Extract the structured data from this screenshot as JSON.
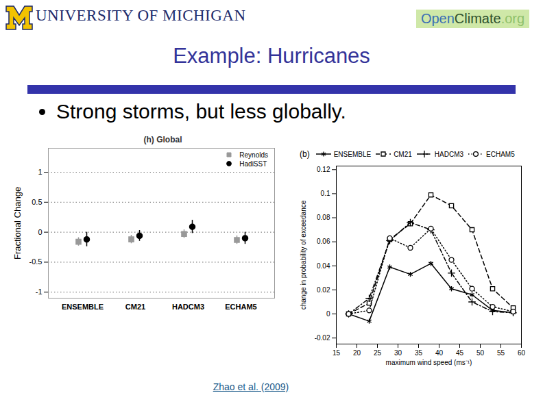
{
  "slide": {
    "header": "UNIVERSITY OF MICHIGAN",
    "logo_right": [
      "Open",
      "Climate",
      ".org"
    ],
    "title": "Example: Hurricanes",
    "bullets": [
      "Strong storms, but less globally."
    ],
    "caption": "Zhao et al. (2009)"
  },
  "chart_data": [
    {
      "type": "scatter",
      "title": "(h) Global",
      "ylabel": "Fractional Change",
      "categories": [
        "ENSEMBLE",
        "CM21",
        "HADCM3",
        "ECHAM5"
      ],
      "series": [
        {
          "name": "Reynolds",
          "color": "#999999",
          "marker": "square",
          "values": [
            -0.16,
            -0.12,
            -0.03,
            -0.13
          ],
          "errors": [
            0.07,
            0.07,
            0.07,
            0.07
          ]
        },
        {
          "name": "HadiSST",
          "color": "#000000",
          "marker": "circle",
          "values": [
            -0.12,
            -0.06,
            0.09,
            -0.1
          ],
          "errors": [
            0.12,
            0.09,
            0.11,
            0.1
          ]
        }
      ],
      "ylim": [
        -1.1,
        1.4
      ],
      "yticks": [
        -1,
        -0.5,
        0,
        0.5,
        1
      ],
      "grid": true,
      "legend": "upper right"
    },
    {
      "type": "line",
      "title": "(b)",
      "xlabel": "maximum wind speed (ms⁻¹)",
      "ylabel": "change in probability of exceedance",
      "x": [
        18,
        23,
        28,
        33,
        38,
        43,
        48,
        53,
        58
      ],
      "series": [
        {
          "name": "ENSEMBLE",
          "color": "#000000",
          "marker": "asterisk",
          "line_style": "solid",
          "values": [
            0,
            -0.006,
            0.039,
            0.033,
            0.042,
            0.021,
            0.016,
            0.003,
            0.001
          ]
        },
        {
          "name": "CM21",
          "color": "#000000",
          "marker": "square",
          "line_style": "dashed",
          "values": [
            0,
            0.009,
            0.062,
            0.075,
            0.099,
            0.09,
            0.07,
            0.021,
            0.005
          ]
        },
        {
          "name": "HADCM3",
          "color": "#000000",
          "marker": "plus",
          "line_style": "dashdot",
          "values": [
            0,
            0.013,
            0.061,
            0.076,
            0.07,
            0.034,
            0.01,
            0.002,
            0.001
          ]
        },
        {
          "name": "ECHAM5",
          "color": "#000000",
          "marker": "circle",
          "line_style": "dotted",
          "values": [
            0,
            0.003,
            0.063,
            0.055,
            0.071,
            0.045,
            0.021,
            0.006,
            0.002
          ]
        }
      ],
      "xlim": [
        15,
        60
      ],
      "xticks": [
        15,
        20,
        25,
        30,
        35,
        40,
        45,
        50,
        55,
        60
      ],
      "ylim": [
        -0.025,
        0.123
      ],
      "yticks": [
        -0.02,
        0,
        0.02,
        0.04,
        0.06,
        0.08,
        0.1,
        0.12
      ],
      "grid": false,
      "legend": "top"
    }
  ]
}
